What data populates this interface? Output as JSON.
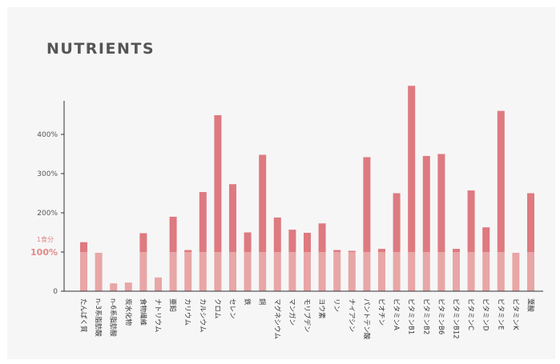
{
  "chart_data": {
    "type": "bar",
    "title": "NUTRIENTS",
    "reference_line": {
      "value": 100,
      "label_top": "1食分",
      "label_bottom": "100%"
    },
    "y_ticks": [
      {
        "value": 0,
        "label": "0"
      },
      {
        "value": 100,
        "label": "100%"
      },
      {
        "value": 200,
        "label": "200%"
      },
      {
        "value": 300,
        "label": "300%"
      },
      {
        "value": 400,
        "label": "400%"
      }
    ],
    "ylim": [
      0,
      520
    ],
    "colors": {
      "over": "#de7a80",
      "base": "#e8a6a6",
      "axis": "#333333"
    },
    "categories": [
      "たんぱく質",
      "n-3系脂肪酸",
      "n-6系脂肪酸",
      "炭水化物",
      "食物繊維",
      "ナトリウム",
      "亜鉛",
      "カリウム",
      "カルシウム",
      "クロム",
      "セレン",
      "鉄",
      "銅",
      "マグネシウム",
      "マンガン",
      "モリブデン",
      "ヨウ素",
      "リン",
      "ナイアシン",
      "パントテン酸",
      "ビオチン",
      "ビタミンA",
      "ビタミンB1",
      "ビタミンB2",
      "ビタミンB6",
      "ビタミンB12",
      "ビタミンC",
      "ビタミンD",
      "ビタミンE",
      "ビタミンK",
      "葉酸"
    ],
    "values": [
      125,
      98,
      20,
      22,
      148,
      35,
      190,
      105,
      253,
      449,
      273,
      150,
      348,
      188,
      157,
      149,
      173,
      105,
      103,
      342,
      108,
      250,
      524,
      345,
      350,
      108,
      257,
      163,
      460,
      98,
      250
    ]
  }
}
